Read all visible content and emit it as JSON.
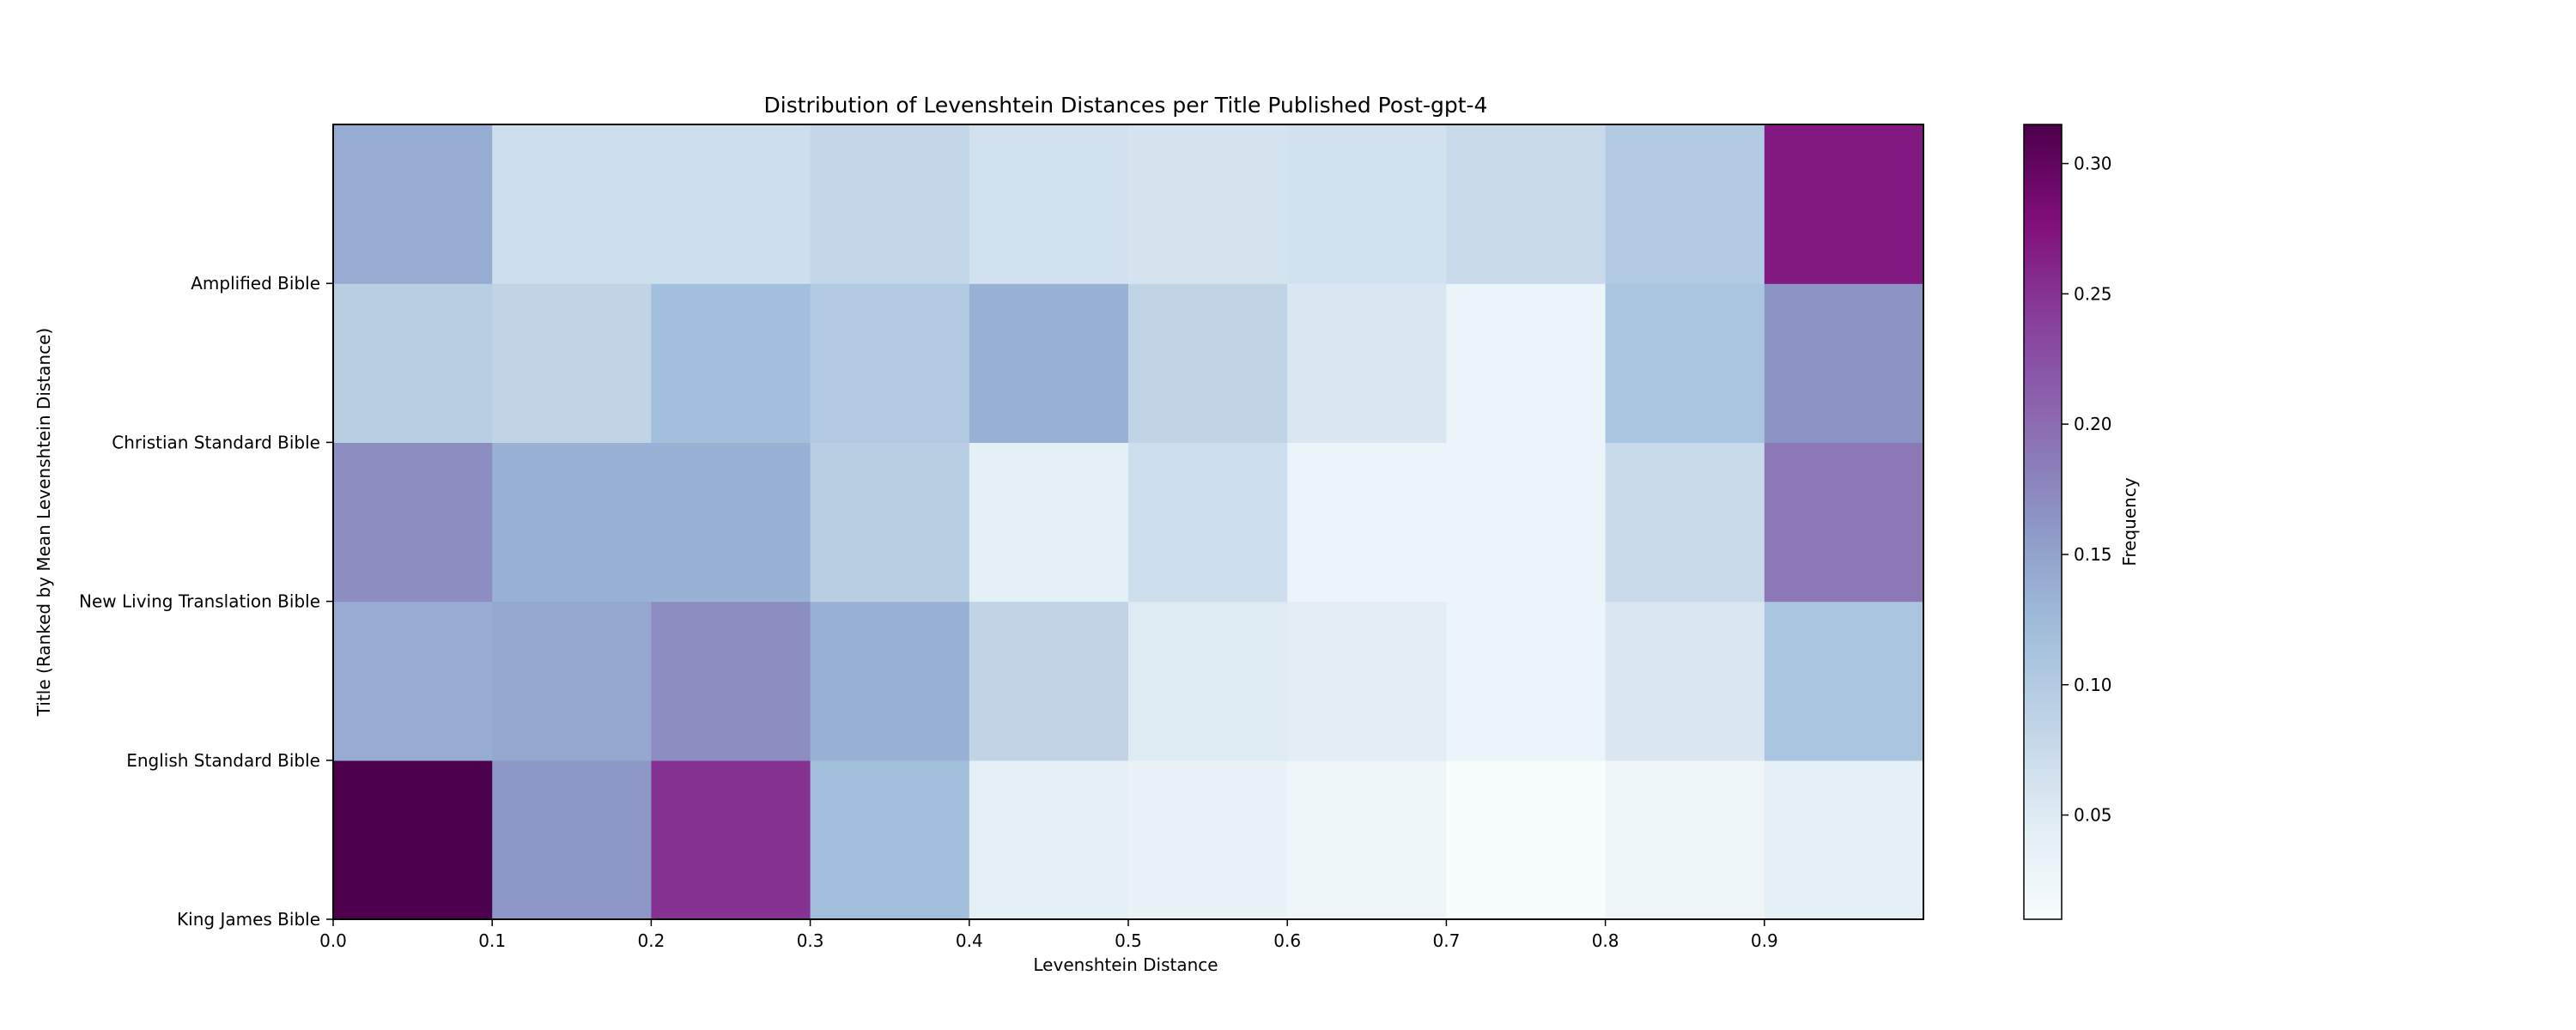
{
  "chart_data": {
    "type": "heatmap",
    "title": "Distribution of Levenshtein Distances per Title Published Post-gpt-4",
    "xlabel": "Levenshtein Distance",
    "ylabel": "Title (Ranked by Mean Levenshtein Distance)",
    "x_bins": [
      0.0,
      0.1,
      0.2,
      0.3,
      0.4,
      0.5,
      0.6,
      0.7,
      0.8,
      0.9,
      1.0
    ],
    "x_ticks": [
      "0.0",
      "0.1",
      "0.2",
      "0.3",
      "0.4",
      "0.5",
      "0.6",
      "0.7",
      "0.8",
      "0.9"
    ],
    "y_tick_labels": [
      "King James Bible",
      "English Standard Bible",
      "New Living Translation Bible",
      "Christian Standard Bible",
      "Amplified Bible"
    ],
    "rows": [
      {
        "values": [
          0.32,
          0.16,
          0.25,
          0.12,
          0.04,
          0.035,
          0.025,
          0.01,
          0.025,
          0.04
        ]
      },
      {
        "values": [
          0.14,
          0.145,
          0.17,
          0.135,
          0.085,
          0.05,
          0.045,
          0.03,
          0.055,
          0.11
        ]
      },
      {
        "values": [
          0.17,
          0.135,
          0.135,
          0.095,
          0.04,
          0.07,
          0.03,
          0.03,
          0.075,
          0.19
        ]
      },
      {
        "values": [
          0.095,
          0.085,
          0.12,
          0.1,
          0.135,
          0.085,
          0.055,
          0.03,
          0.11,
          0.165
        ]
      },
      {
        "values": [
          0.14,
          0.07,
          0.07,
          0.08,
          0.065,
          0.06,
          0.065,
          0.075,
          0.1,
          0.27
        ]
      }
    ],
    "colorbar": {
      "label": "Frequency",
      "min": 0.01,
      "max": 0.315,
      "ticks": [
        "0.05",
        "0.10",
        "0.15",
        "0.20",
        "0.25",
        "0.30"
      ],
      "colormap": "BuPu",
      "colors": [
        "#f7fcfd",
        "#e0ecf4",
        "#bfd3e6",
        "#9ebcda",
        "#8c96c6",
        "#8c6bb1",
        "#88419d",
        "#810f7c",
        "#4d004b"
      ]
    },
    "legend": "colorbar right",
    "grid": false
  }
}
